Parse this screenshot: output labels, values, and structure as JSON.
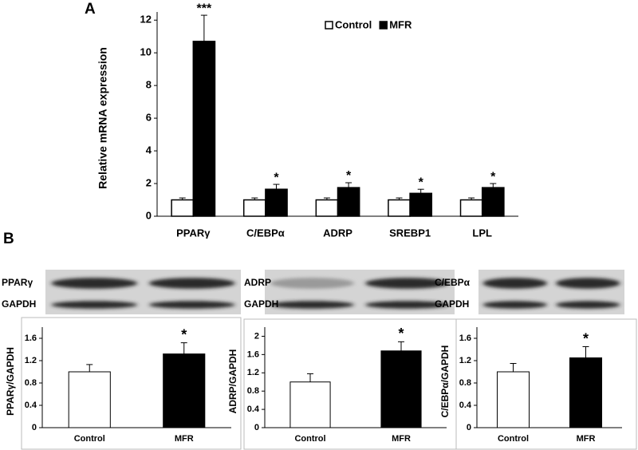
{
  "panel_labels": [
    "A",
    "B"
  ],
  "blots": [
    {
      "protein": "PPARγ",
      "loading": "GAPDH"
    },
    {
      "protein": "ADRP",
      "loading": "GAPDH"
    },
    {
      "protein": "C/EBPα",
      "loading": "GAPDH"
    }
  ],
  "chart_data": [
    {
      "type": "bar",
      "ylabel": "Relative mRNA expression",
      "categories": [
        "PPARγ",
        "C/EBPα",
        "ADRP",
        "SREBP1",
        "LPL"
      ],
      "series": [
        {
          "name": "Control",
          "color": "#ffffff",
          "values": [
            1,
            1,
            1,
            1,
            1
          ],
          "errors": [
            0.12,
            0.12,
            0.12,
            0.12,
            0.12
          ]
        },
        {
          "name": "MFR",
          "color": "#000000",
          "values": [
            10.7,
            1.65,
            1.75,
            1.4,
            1.75
          ],
          "errors": [
            1.6,
            0.3,
            0.3,
            0.25,
            0.25
          ],
          "significance": [
            "***",
            "*",
            "*",
            "*",
            "*"
          ]
        }
      ],
      "ylim": [
        0,
        12.5
      ],
      "yticks": [
        0,
        2,
        4,
        6,
        8,
        10,
        12
      ],
      "legend": "top-right"
    },
    {
      "type": "bar",
      "ylabel": "PPARγ/GAPDH",
      "categories": [
        "Control",
        "MFR"
      ],
      "values": [
        1.0,
        1.32
      ],
      "errors": [
        0.13,
        0.2
      ],
      "colors": [
        "#ffffff",
        "#000000"
      ],
      "significance": [
        null,
        "*"
      ],
      "ylim": [
        0,
        1.8
      ],
      "yticks": [
        0,
        0.4,
        0.8,
        1.2,
        1.6
      ]
    },
    {
      "type": "bar",
      "ylabel": "ADRP/GAPDH",
      "categories": [
        "Control",
        "MFR"
      ],
      "values": [
        1.0,
        1.68
      ],
      "errors": [
        0.18,
        0.2
      ],
      "colors": [
        "#ffffff",
        "#000000"
      ],
      "significance": [
        null,
        "*"
      ],
      "ylim": [
        0,
        2.2
      ],
      "yticks": [
        0,
        0.4,
        0.8,
        1.2,
        1.6,
        2
      ]
    },
    {
      "type": "bar",
      "ylabel": "C/EBPα/GAPDH",
      "categories": [
        "Control",
        "MFR"
      ],
      "values": [
        1.0,
        1.25
      ],
      "errors": [
        0.15,
        0.2
      ],
      "colors": [
        "#ffffff",
        "#000000"
      ],
      "significance": [
        null,
        "*"
      ],
      "ylim": [
        0,
        1.8
      ],
      "yticks": [
        0,
        0.4,
        0.8,
        1.2,
        1.6
      ]
    }
  ]
}
